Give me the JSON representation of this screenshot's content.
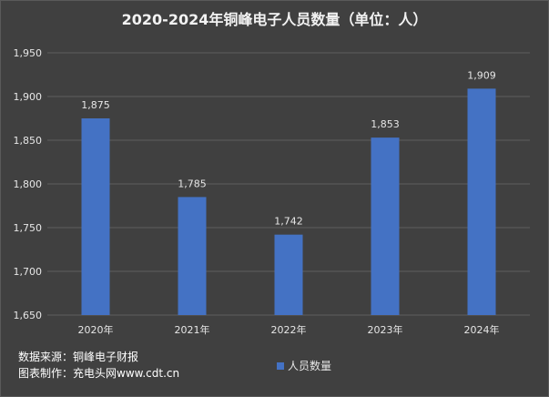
{
  "chart_data": {
    "type": "bar",
    "title": "2020-2024年铜峰电子人员数量（单位：人）",
    "categories": [
      "2020年",
      "2021年",
      "2022年",
      "2023年",
      "2024年"
    ],
    "series": [
      {
        "name": "人员数量",
        "values": [
          1875,
          1785,
          1742,
          1853,
          1909
        ]
      }
    ],
    "data_labels": [
      "1,875",
      "1,785",
      "1,742",
      "1,853",
      "1,909"
    ],
    "ylim": [
      1650,
      1950
    ],
    "yticks": [
      1650,
      1700,
      1750,
      1800,
      1850,
      1900,
      1950
    ],
    "ytick_labels": [
      "1,650",
      "1,700",
      "1,750",
      "1,800",
      "1,850",
      "1,900",
      "1,950"
    ],
    "grid": true,
    "legend_position": "bottom",
    "colors": {
      "bar": "#4472c4",
      "background": "#404040",
      "grid": "#5e5e5e",
      "text": "#e6e6e6"
    }
  },
  "footer": {
    "source_line": "数据来源：铜峰电子财报",
    "maker_line": "图表制作：充电头网www.cdt.cn"
  }
}
